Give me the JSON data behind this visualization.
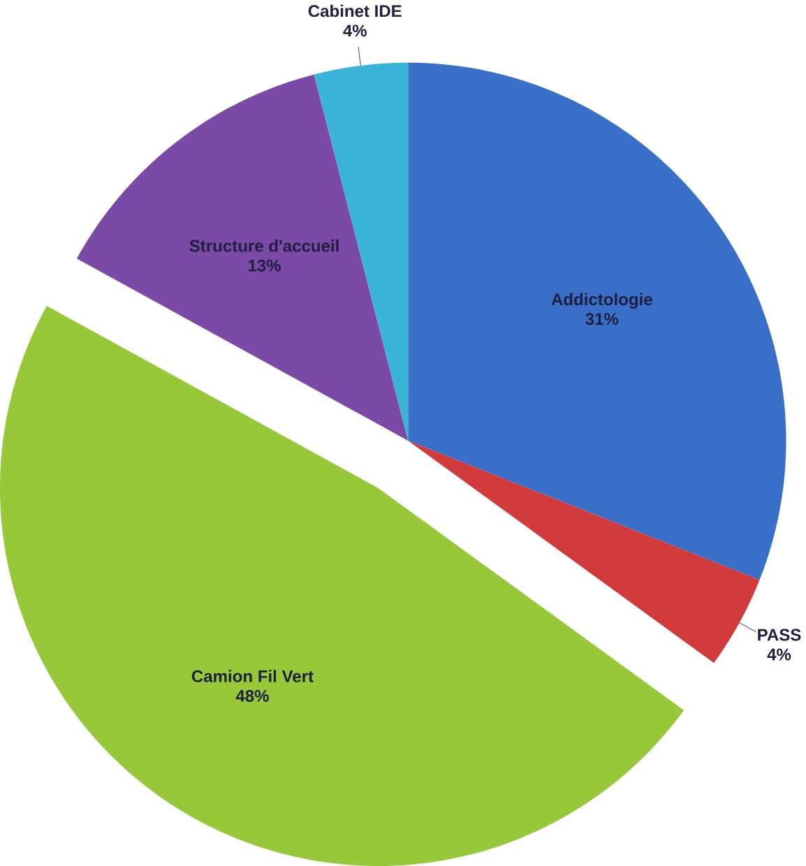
{
  "chart_data": {
    "type": "pie",
    "categories": [
      "Addictologie",
      "PASS",
      "Camion Fil Vert",
      "Structure d'accueil",
      "Cabinet IDE"
    ],
    "values": [
      31,
      4,
      48,
      13,
      4
    ],
    "value_labels": [
      "31%",
      "4%",
      "48%",
      "13%",
      "4%"
    ],
    "colors": [
      "#3a6fc9",
      "#d03a3a",
      "#96c83a",
      "#7a4aa6",
      "#3ab4d8"
    ]
  }
}
